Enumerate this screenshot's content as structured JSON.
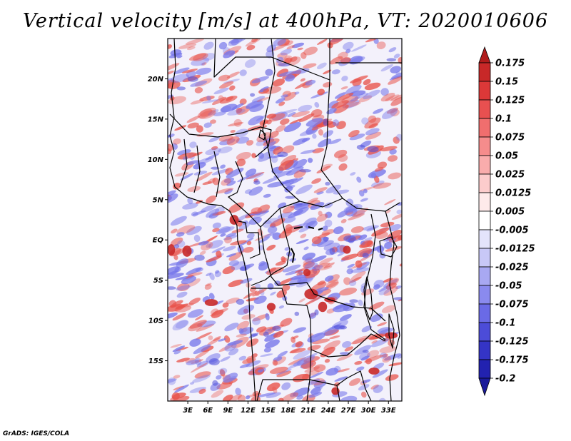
{
  "title": "Vertical velocity [m/s] at 400hPa, VT: 2020010606",
  "credit": "GrADS: IGES/COLA",
  "map": {
    "lon_range": [
      0,
      35
    ],
    "lat_range": [
      -20,
      25
    ],
    "lat_ticks": [
      {
        "value": 20,
        "label": "20N"
      },
      {
        "value": 15,
        "label": "15N"
      },
      {
        "value": 10,
        "label": "10N"
      },
      {
        "value": 5,
        "label": "5N"
      },
      {
        "value": 0,
        "label": "EQ"
      },
      {
        "value": -5,
        "label": "5S"
      },
      {
        "value": -10,
        "label": "10S"
      },
      {
        "value": -15,
        "label": "15S"
      }
    ],
    "lon_ticks": [
      {
        "value": 3,
        "label": "3E"
      },
      {
        "value": 6,
        "label": "6E"
      },
      {
        "value": 9,
        "label": "9E"
      },
      {
        "value": 12,
        "label": "12E"
      },
      {
        "value": 15,
        "label": "15E"
      },
      {
        "value": 18,
        "label": "18E"
      },
      {
        "value": 21,
        "label": "21E"
      },
      {
        "value": 24,
        "label": "24E"
      },
      {
        "value": 27,
        "label": "27E"
      },
      {
        "value": 30,
        "label": "30E"
      },
      {
        "value": 33,
        "label": "33E"
      }
    ],
    "positive_color": "#e8524a",
    "negative_color": "#7575ea"
  },
  "colorbar": {
    "labels": [
      "0.175",
      "0.15",
      "0.125",
      "0.1",
      "0.075",
      "0.05",
      "0.025",
      "0.0125",
      "0.005",
      "-0.005",
      "-0.0125",
      "-0.025",
      "-0.05",
      "-0.075",
      "-0.1",
      "-0.125",
      "-0.175",
      "-0.2"
    ],
    "colors": [
      "#b01c1c",
      "#c82828",
      "#dc3838",
      "#e85050",
      "#f06e6e",
      "#f58c8c",
      "#f9acac",
      "#fccccc",
      "#feeaea",
      "#ffffff",
      "#e4e4fb",
      "#c8c8f7",
      "#a8a8f2",
      "#8a8aee",
      "#6a6ae6",
      "#4c4cd8",
      "#3434c6",
      "#2222b0",
      "#1a1a9a"
    ]
  }
}
